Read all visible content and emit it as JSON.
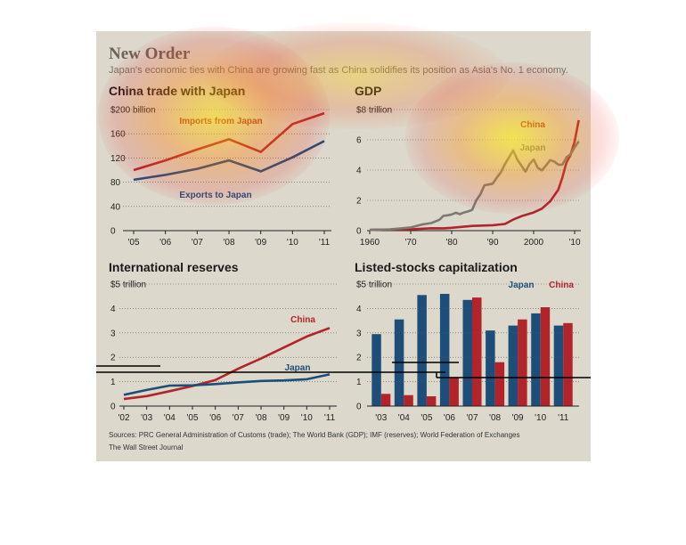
{
  "title": "New Order",
  "subtitle": "Japan's economic ties with China are growing fast as China solidifies its position as Asia's No. 1 economy.",
  "sources": "Sources: PRC General Administration of Customs (trade); The World Bank (GDP); IMF (reserves); World Federation of Exchanges",
  "credit": "The Wall Street Journal",
  "colors": {
    "red": "#b2242a",
    "blue": "#1d4e79",
    "gray": "#7a7a72",
    "panel": "#dcd8cc"
  },
  "chart_data": [
    {
      "id": "trade",
      "type": "line",
      "title": "China trade with Japan",
      "ylabel": "$200 billion",
      "x": [
        "'05",
        "'06",
        "'07",
        "'08",
        "'09",
        "'10",
        "'11"
      ],
      "yticks": [
        "0",
        "40",
        "80",
        "120",
        "160",
        "$200 billion"
      ],
      "ylim": [
        0,
        200
      ],
      "series": [
        {
          "name": "Imports from Japan",
          "values": [
            100,
            116,
            134,
            151,
            130,
            176,
            194
          ]
        },
        {
          "name": "Exports to Japan",
          "values": [
            84,
            92,
            102,
            116,
            98,
            121,
            148
          ]
        }
      ]
    },
    {
      "id": "gdp",
      "type": "line",
      "title": "GDP",
      "ylabel": "$8 trillion",
      "x": [
        1960,
        1970,
        1980,
        1990,
        2000,
        2010
      ],
      "xticks": [
        "1960",
        "'70",
        "'80",
        "'90",
        "2000",
        "'10"
      ],
      "yticks": [
        "0",
        "2",
        "4",
        "6",
        "$8 trillion"
      ],
      "ylim": [
        0,
        8
      ],
      "series": [
        {
          "name": "China",
          "points": [
            [
              1960,
              0.06
            ],
            [
              1965,
              0.07
            ],
            [
              1970,
              0.09
            ],
            [
              1975,
              0.16
            ],
            [
              1978,
              0.15
            ],
            [
              1980,
              0.19
            ],
            [
              1985,
              0.31
            ],
            [
              1990,
              0.36
            ],
            [
              1993,
              0.44
            ],
            [
              1995,
              0.73
            ],
            [
              1997,
              0.95
            ],
            [
              2000,
              1.2
            ],
            [
              2002,
              1.45
            ],
            [
              2004,
              1.93
            ],
            [
              2006,
              2.7
            ],
            [
              2007,
              3.5
            ],
            [
              2008,
              4.5
            ],
            [
              2009,
              5.0
            ],
            [
              2010,
              5.9
            ],
            [
              2011,
              7.3
            ]
          ]
        },
        {
          "name": "Japan",
          "points": [
            [
              1960,
              0.04
            ],
            [
              1965,
              0.09
            ],
            [
              1970,
              0.21
            ],
            [
              1973,
              0.42
            ],
            [
              1975,
              0.5
            ],
            [
              1977,
              0.72
            ],
            [
              1978,
              0.98
            ],
            [
              1979,
              1.01
            ],
            [
              1980,
              1.07
            ],
            [
              1981,
              1.18
            ],
            [
              1982,
              1.09
            ],
            [
              1983,
              1.2
            ],
            [
              1984,
              1.27
            ],
            [
              1985,
              1.37
            ],
            [
              1986,
              2.0
            ],
            [
              1987,
              2.4
            ],
            [
              1988,
              3.0
            ],
            [
              1989,
              3.05
            ],
            [
              1990,
              3.1
            ],
            [
              1991,
              3.5
            ],
            [
              1992,
              3.85
            ],
            [
              1993,
              4.4
            ],
            [
              1994,
              4.85
            ],
            [
              1995,
              5.3
            ],
            [
              1996,
              4.7
            ],
            [
              1997,
              4.3
            ],
            [
              1998,
              3.9
            ],
            [
              1999,
              4.4
            ],
            [
              2000,
              4.7
            ],
            [
              2001,
              4.15
            ],
            [
              2002,
              3.98
            ],
            [
              2003,
              4.3
            ],
            [
              2004,
              4.65
            ],
            [
              2005,
              4.57
            ],
            [
              2006,
              4.36
            ],
            [
              2007,
              4.36
            ],
            [
              2008,
              4.85
            ],
            [
              2009,
              5.04
            ],
            [
              2010,
              5.5
            ],
            [
              2011,
              5.9
            ]
          ]
        }
      ]
    },
    {
      "id": "reserves",
      "type": "line",
      "title": "International reserves",
      "ylabel": "$5 trillion",
      "x": [
        "'02",
        "'03",
        "'04",
        "'05",
        "'06",
        "'07",
        "'08",
        "'09",
        "'10",
        "'11"
      ],
      "yticks": [
        "0",
        "1",
        "2",
        "3",
        "4",
        "$5 trillion"
      ],
      "ylim": [
        0,
        5
      ],
      "series": [
        {
          "name": "China",
          "values": [
            0.29,
            0.41,
            0.61,
            0.82,
            1.07,
            1.53,
            1.95,
            2.4,
            2.85,
            3.2
          ]
        },
        {
          "name": "Japan",
          "values": [
            0.46,
            0.66,
            0.84,
            0.85,
            0.9,
            0.97,
            1.03,
            1.05,
            1.1,
            1.3
          ]
        }
      ]
    },
    {
      "id": "stocks",
      "type": "bar",
      "title": "Listed-stocks capitalization",
      "ylabel": "$5 trillion",
      "categories": [
        "'03",
        "'04",
        "'05",
        "'06",
        "'07",
        "'08",
        "'09",
        "'10",
        "'11"
      ],
      "yticks": [
        "0",
        "1",
        "2",
        "3",
        "4",
        "$5 trillion"
      ],
      "ylim": [
        0,
        5
      ],
      "series": [
        {
          "name": "Japan",
          "values": [
            2.95,
            3.55,
            4.55,
            4.6,
            4.35,
            3.1,
            3.3,
            3.8,
            3.3
          ]
        },
        {
          "name": "China",
          "values": [
            0.5,
            0.45,
            0.4,
            1.15,
            4.45,
            1.8,
            3.55,
            4.05,
            3.4
          ]
        }
      ]
    }
  ]
}
